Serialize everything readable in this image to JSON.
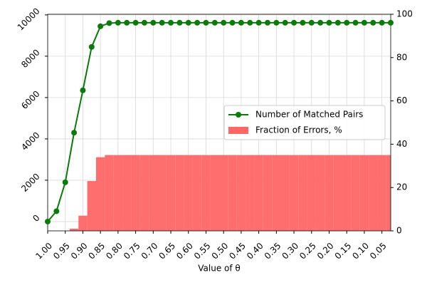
{
  "chart_data": {
    "type": "combo",
    "xlabel": "Value of θ",
    "x": [
      1,
      0.975,
      0.95,
      0.925,
      0.9,
      0.875,
      0.85,
      0.825,
      0.8,
      0.775,
      0.75,
      0.725,
      0.7,
      0.675,
      0.65,
      0.625,
      0.6,
      0.575,
      0.55,
      0.525,
      0.5,
      0.475,
      0.45,
      0.425,
      0.4,
      0.375,
      0.35,
      0.325,
      0.3,
      0.275,
      0.25,
      0.225,
      0.2,
      0.175,
      0.15,
      0.125,
      0.1,
      0.075,
      0.05,
      0.025
    ],
    "series": [
      {
        "name": "Number of Matched Pairs",
        "type": "line",
        "color": "#0a7a0a",
        "values": [
          0,
          500,
          1900,
          4300,
          6350,
          8450,
          9450,
          9600,
          9620,
          9620,
          9620,
          9620,
          9620,
          9620,
          9620,
          9620,
          9620,
          9620,
          9620,
          9620,
          9620,
          9620,
          9620,
          9620,
          9620,
          9620,
          9620,
          9620,
          9620,
          9620,
          9620,
          9620,
          9620,
          9620,
          9620,
          9620,
          9620,
          9620,
          9620,
          9620
        ]
      },
      {
        "name": "Fraction of Errors, %",
        "type": "bar",
        "axis": "y2",
        "color": "#ff6666",
        "values": [
          0,
          0,
          0,
          1,
          7,
          23,
          34,
          35,
          35,
          35,
          35,
          35,
          35,
          35,
          35,
          35,
          35,
          35,
          35,
          35,
          35,
          35,
          35,
          35,
          35,
          35,
          35,
          35,
          35,
          35,
          35,
          35,
          35,
          35,
          35,
          35,
          35,
          35,
          35,
          35
        ]
      }
    ],
    "xlim": [
      1,
      0.025
    ],
    "xticks": [
      {
        "value": 1,
        "label": "1.00"
      },
      {
        "value": 0.95,
        "label": "0.95"
      },
      {
        "value": 0.9,
        "label": "0.90"
      },
      {
        "value": 0.85,
        "label": "0.85"
      },
      {
        "value": 0.8,
        "label": "0.80"
      },
      {
        "value": 0.75,
        "label": "0.75"
      },
      {
        "value": 0.7,
        "label": "0.70"
      },
      {
        "value": 0.65,
        "label": "0.65"
      },
      {
        "value": 0.6,
        "label": "0.60"
      },
      {
        "value": 0.55,
        "label": "0.55"
      },
      {
        "value": 0.5,
        "label": "0.50"
      },
      {
        "value": 0.45,
        "label": "0.45"
      },
      {
        "value": 0.4,
        "label": "0.40"
      },
      {
        "value": 0.35,
        "label": "0.35"
      },
      {
        "value": 0.3,
        "label": "0.30"
      },
      {
        "value": 0.25,
        "label": "0.25"
      },
      {
        "value": 0.2,
        "label": "0.20"
      },
      {
        "value": 0.15,
        "label": "0.15"
      },
      {
        "value": 0.1,
        "label": "0.10"
      },
      {
        "value": 0.05,
        "label": "0.05"
      }
    ],
    "ylim": [
      -450,
      10030
    ],
    "yticks": [
      0,
      2000,
      4000,
      6000,
      8000,
      10000
    ],
    "y2lim": [
      0,
      100
    ],
    "y2ticks": [
      0,
      20,
      40,
      60,
      80,
      100
    ],
    "grid": true,
    "legend": "center right"
  }
}
